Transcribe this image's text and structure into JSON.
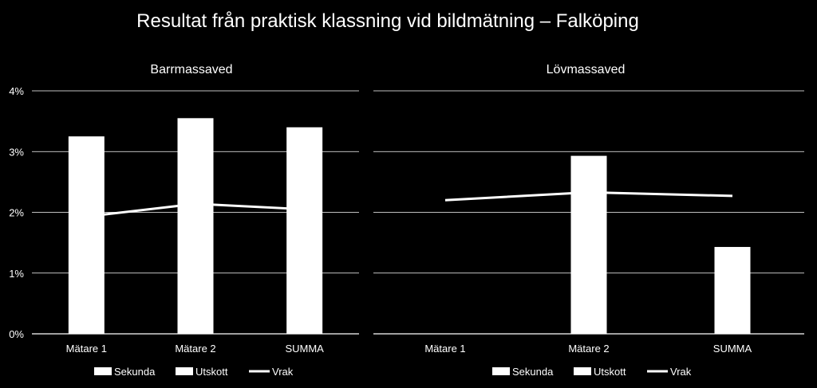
{
  "title": "Resultat från praktisk klassning vid bildmätning – Falköping",
  "chart_data": {
    "type": "bar",
    "ylim": [
      0,
      0.04
    ],
    "yticks": [
      "0%",
      "1%",
      "2%",
      "3%",
      "4%"
    ],
    "grid": true,
    "legend_placement": "bottom",
    "legend": [
      {
        "name": "Sekunda",
        "kind": "bar"
      },
      {
        "name": "Utskott",
        "kind": "bar"
      },
      {
        "name": "Vrak",
        "kind": "line"
      }
    ],
    "panels": [
      {
        "title": "Barrmassaved",
        "categories": [
          "Mätare 1",
          "Mätare 2",
          "SUMMA"
        ],
        "series": [
          {
            "name": "Sekunda",
            "type": "bar",
            "values": [
              null,
              null,
              null
            ]
          },
          {
            "name": "Utskott",
            "type": "bar",
            "values": [
              0.0325,
              0.0355,
              0.034
            ]
          },
          {
            "name": "Vrak",
            "type": "line",
            "values": [
              0.0193,
              0.0214,
              0.0205
            ]
          }
        ]
      },
      {
        "title": "Lövmassaved",
        "categories": [
          "Mätare 1",
          "Mätare 2",
          "SUMMA"
        ],
        "series": [
          {
            "name": "Sekunda",
            "type": "bar",
            "values": [
              null,
              null,
              null
            ]
          },
          {
            "name": "Utskott",
            "type": "bar",
            "values": [
              null,
              0.0293,
              0.0143
            ]
          },
          {
            "name": "Vrak",
            "type": "line",
            "values": [
              0.022,
              0.0233,
              0.0227
            ]
          }
        ]
      }
    ]
  },
  "colors": {
    "background": "#000000",
    "bars": "#ffffff",
    "line": "#ffffff",
    "grid": "#ffffff"
  }
}
